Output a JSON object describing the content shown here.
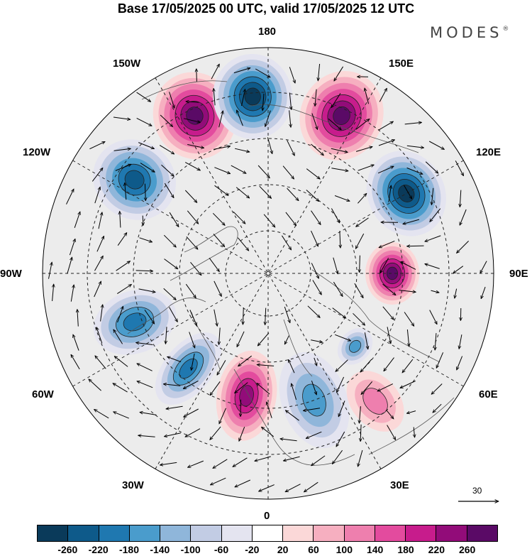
{
  "title": "Base 17/05/2025 00 UTC, valid 17/05/2025 12 UTC",
  "logo": {
    "text": "MODES",
    "mark": "®"
  },
  "map": {
    "projection": "north-polar-stereographic",
    "longitude_labels": {
      "top": "180",
      "bottom": "0",
      "left": "90W",
      "right": "90E",
      "upper_left_1": "150W",
      "upper_left_2": "120W",
      "upper_right_1": "150E",
      "upper_right_2": "120E",
      "lower_left_1": "60W",
      "lower_left_2": "30W",
      "lower_right_1": "60E",
      "lower_right_2": "30E"
    },
    "anomaly_centers": [
      {
        "sign": "positive",
        "lon": "155W",
        "strength": 240
      },
      {
        "sign": "negative",
        "lon": "175W",
        "strength": -250
      },
      {
        "sign": "positive",
        "lon": "155E",
        "strength": 230
      },
      {
        "sign": "negative",
        "lon": "125W",
        "strength": -200
      },
      {
        "sign": "negative",
        "lon": "120E",
        "strength": -230
      },
      {
        "sign": "positive",
        "lon": "90E",
        "strength": 220
      },
      {
        "sign": "negative",
        "lon": "70W",
        "strength": -160
      },
      {
        "sign": "negative",
        "lon": "40W",
        "strength": -170
      },
      {
        "sign": "positive",
        "lon": "10W",
        "strength": 200
      },
      {
        "sign": "negative",
        "lon": "20E",
        "strength": -100
      },
      {
        "sign": "negative",
        "lon": "50E",
        "strength": -100
      },
      {
        "sign": "positive",
        "lon": "40E",
        "strength": 80
      }
    ]
  },
  "wind_reference": {
    "value": "30"
  },
  "colorbar": {
    "ticks": [
      "-260",
      "-220",
      "-180",
      "-140",
      "-100",
      "-60",
      "-20",
      "20",
      "60",
      "100",
      "140",
      "180",
      "220",
      "260"
    ],
    "colors": [
      "#0a3a5a",
      "#0e5a8a",
      "#1f78b0",
      "#4a9ccc",
      "#8fb6da",
      "#c2cce4",
      "#e4e4f0",
      "#ffffff",
      "#fbd8d8",
      "#f6afc0",
      "#ee7fae",
      "#e34b9e",
      "#c71c8c",
      "#920c79",
      "#5a0a66"
    ]
  }
}
